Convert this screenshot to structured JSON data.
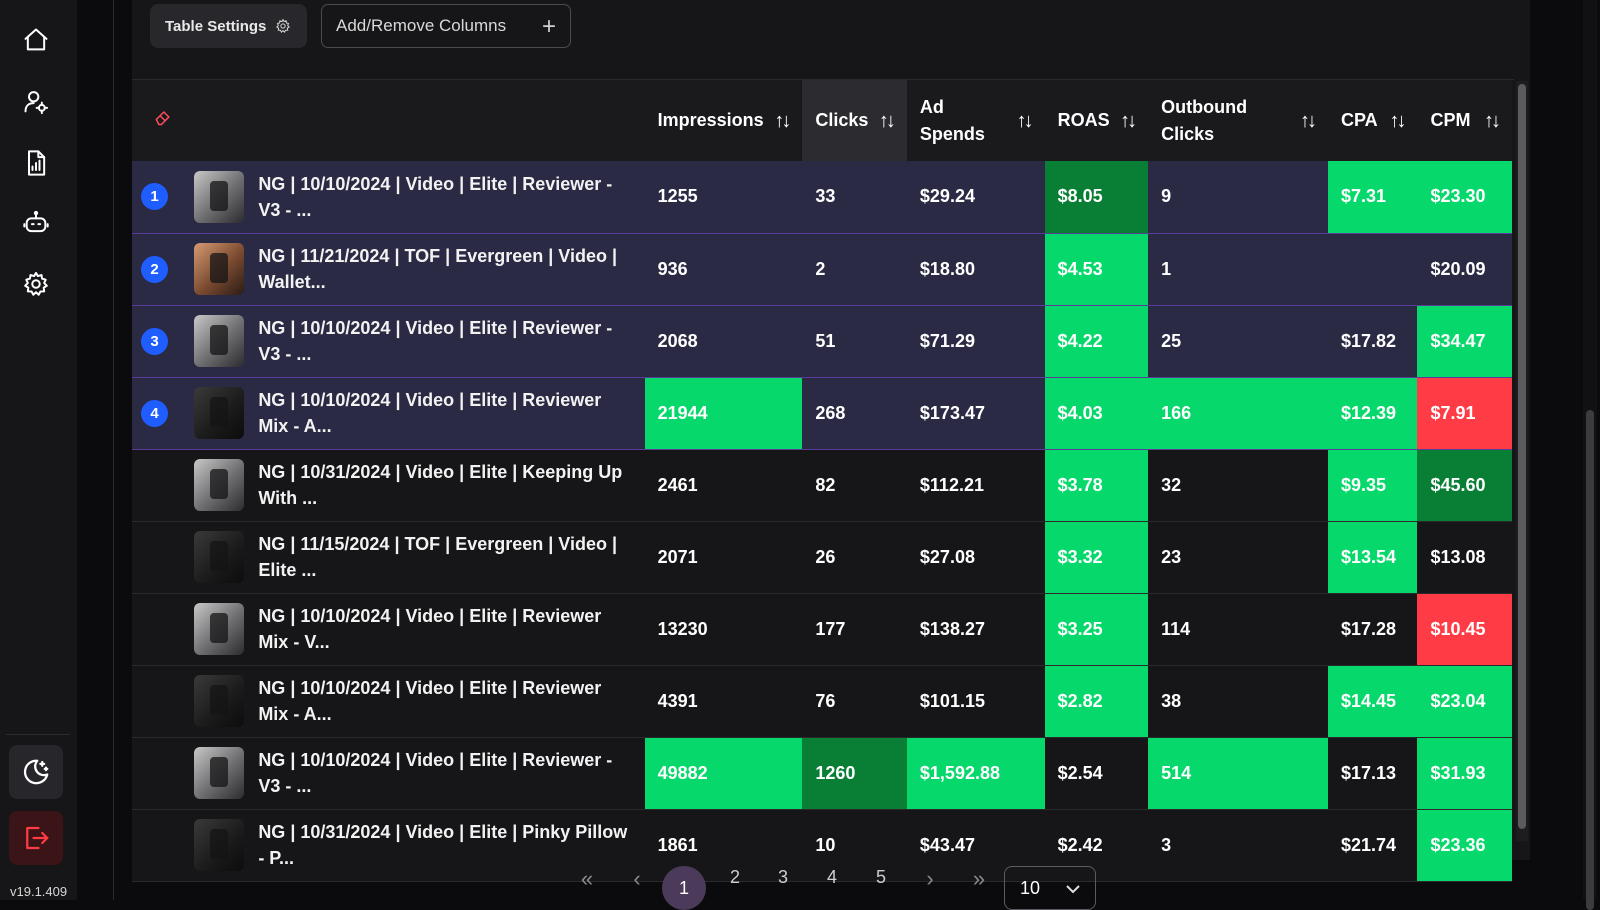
{
  "sidebar": {
    "icons": [
      "home-icon",
      "user-settings-icon",
      "report-icon",
      "robot-icon",
      "gear-icon"
    ],
    "theme_icon": "moon-stars-icon",
    "logout_icon": "logout-icon",
    "version": "v19.1.409"
  },
  "toolbar": {
    "settings_label": "Table Settings",
    "columns_label": "Add/Remove Columns",
    "plus": "+"
  },
  "table": {
    "headers": {
      "impressions": "Impressions",
      "clicks": "Clicks",
      "ad_spends": "Ad Spends",
      "roas": "ROAS",
      "outbound_clicks": "Outbound Clicks",
      "cpa": "CPA",
      "cpm": "CPM",
      "sort_glyph": "↑↓"
    },
    "rows": [
      {
        "rank": "1",
        "name": "NG | 10/10/2024 | Video | Elite | Reviewer - V3 - ...",
        "impressions": "1255",
        "clicks": "33",
        "spend": "$29.24",
        "roas": "$8.05",
        "outbound": "9",
        "cpa": "$7.31",
        "cpm": "$23.30"
      },
      {
        "rank": "2",
        "name": "NG | 11/21/2024 | TOF | Evergreen | Video | Wallet...",
        "impressions": "936",
        "clicks": "2",
        "spend": "$18.80",
        "roas": "$4.53",
        "outbound": "1",
        "cpa": "",
        "cpm": "$20.09"
      },
      {
        "rank": "3",
        "name": "NG | 10/10/2024 | Video | Elite | Reviewer - V3 - ...",
        "impressions": "2068",
        "clicks": "51",
        "spend": "$71.29",
        "roas": "$4.22",
        "outbound": "25",
        "cpa": "$17.82",
        "cpm": "$34.47"
      },
      {
        "rank": "4",
        "name": "NG | 10/10/2024 | Video | Elite | Reviewer Mix - A...",
        "impressions": "21944",
        "clicks": "268",
        "spend": "$173.47",
        "roas": "$4.03",
        "outbound": "166",
        "cpa": "$12.39",
        "cpm": "$7.91"
      },
      {
        "rank": "",
        "name": "NG | 10/31/2024 | Video | Elite | Keeping Up With ...",
        "impressions": "2461",
        "clicks": "82",
        "spend": "$112.21",
        "roas": "$3.78",
        "outbound": "32",
        "cpa": "$9.35",
        "cpm": "$45.60"
      },
      {
        "rank": "",
        "name": "NG | 11/15/2024 | TOF | Evergreen | Video | Elite ...",
        "impressions": "2071",
        "clicks": "26",
        "spend": "$27.08",
        "roas": "$3.32",
        "outbound": "23",
        "cpa": "$13.54",
        "cpm": "$13.08"
      },
      {
        "rank": "",
        "name": "NG | 10/10/2024 | Video | Elite | Reviewer Mix - V...",
        "impressions": "13230",
        "clicks": "177",
        "spend": "$138.27",
        "roas": "$3.25",
        "outbound": "114",
        "cpa": "$17.28",
        "cpm": "$10.45"
      },
      {
        "rank": "",
        "name": "NG | 10/10/2024 | Video | Elite | Reviewer Mix - A...",
        "impressions": "4391",
        "clicks": "76",
        "spend": "$101.15",
        "roas": "$2.82",
        "outbound": "38",
        "cpa": "$14.45",
        "cpm": "$23.04"
      },
      {
        "rank": "",
        "name": "NG | 10/10/2024 | Video | Elite | Reviewer - V3 - ...",
        "impressions": "49882",
        "clicks": "1260",
        "spend": "$1,592.88",
        "roas": "$2.54",
        "outbound": "514",
        "cpa": "$17.13",
        "cpm": "$31.93"
      },
      {
        "rank": "",
        "name": "NG | 10/31/2024 | Video | Elite | Pinky Pillow - P...",
        "impressions": "1861",
        "clicks": "10",
        "spend": "$43.47",
        "roas": "$2.42",
        "outbound": "3",
        "cpa": "$21.74",
        "cpm": "$23.36"
      }
    ]
  },
  "pagination": {
    "first": "«",
    "prev": "‹",
    "pages": [
      "1",
      "2",
      "3",
      "4",
      "5"
    ],
    "current": "1",
    "next": "›",
    "last": "»",
    "page_size": "10"
  },
  "colors": {
    "green": "#07d86b",
    "dark_green": "#087f35",
    "red": "#ff3b45",
    "selected_row": "#2a2a44",
    "badge": "#1f5dff"
  }
}
